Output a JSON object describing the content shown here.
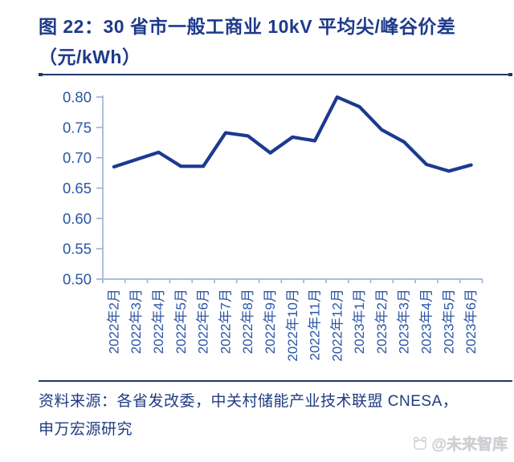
{
  "header": {
    "title_line1": "图 22：30 省市一般工商业 10kV 平均尖/峰谷价差",
    "title_line2": "（元/kWh）"
  },
  "chart_data": {
    "type": "line",
    "title": "30 省市一般工商业 10kV 平均尖/峰谷价差（元/kWh）",
    "categories": [
      "2022年2月",
      "2022年3月",
      "2022年4月",
      "2022年5月",
      "2022年6月",
      "2022年7月",
      "2022年8月",
      "2022年9月",
      "2022年10月",
      "2022年11月",
      "2022年12月",
      "2023年1月",
      "2023年2月",
      "2023年3月",
      "2023年4月",
      "2023年5月",
      "2023年6月"
    ],
    "values": [
      0.685,
      0.697,
      0.709,
      0.686,
      0.686,
      0.741,
      0.736,
      0.708,
      0.734,
      0.728,
      0.8,
      0.784,
      0.746,
      0.726,
      0.689,
      0.678,
      0.688
    ],
    "xlabel": "",
    "ylabel": "",
    "ylim": [
      0.5,
      0.8
    ],
    "ytick_step": 0.05,
    "yticks": [
      "0.80",
      "0.75",
      "0.70",
      "0.65",
      "0.60",
      "0.55",
      "0.50"
    ],
    "grid": false,
    "legend_position": "none",
    "series_color": "#1b3a8f",
    "axis_color": "#9bb5da",
    "tick_label_color": "#2a55a4"
  },
  "footer": {
    "source_line1": "资料来源：各省发改委，中关村储能产业技术联盟 CNESA，",
    "source_line2": "申万宏源研究",
    "watermark": "@未来智库"
  }
}
